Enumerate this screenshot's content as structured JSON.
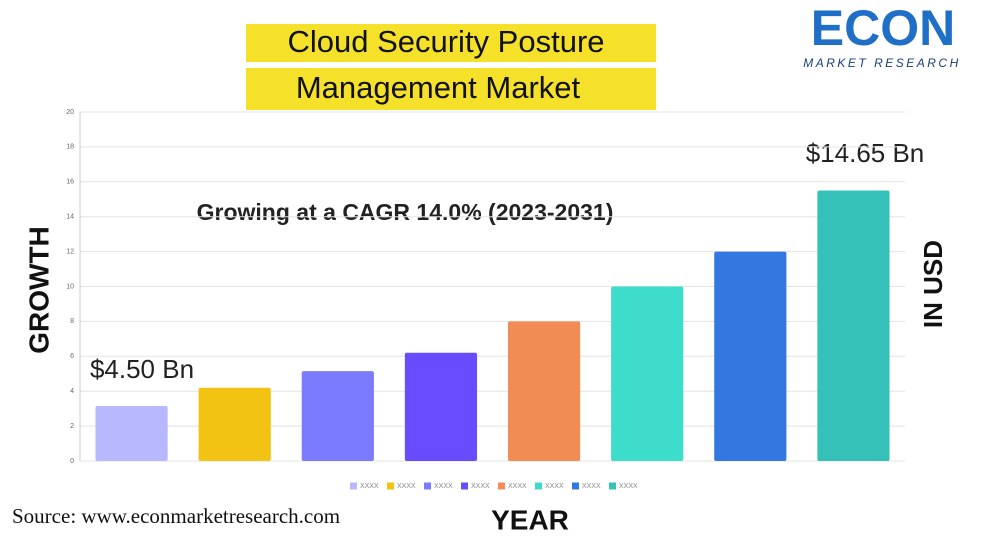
{
  "title_lines": [
    "Cloud Security Posture",
    "Management Market"
  ],
  "logo": {
    "name": "ECON",
    "subtitle": "MARKET RESEARCH"
  },
  "source": "Source: www.econmarketresearch.com",
  "chart_data": {
    "type": "bar",
    "subtitle": "Growing at a CAGR 14.0% (2023-2031)",
    "y_label": "GROWTH",
    "y2_label": "IN USD",
    "x_label": "YEAR",
    "annotations": [
      "$4.50 Bn",
      "$14.65 Bn"
    ],
    "categories": [
      null
    ],
    "series": [
      {
        "name": "XXXX",
        "color": "#b8b8ff",
        "values": [
          3.15
        ]
      },
      {
        "name": "XXXX",
        "color": "#f2c313",
        "values": [
          4.2
        ]
      },
      {
        "name": "XXXX",
        "color": "#7b7bff",
        "values": [
          5.15
        ]
      },
      {
        "name": "XXXX",
        "color": "#6a4cff",
        "values": [
          6.2
        ]
      },
      {
        "name": "XXXX",
        "color": "#f28c55",
        "values": [
          8
        ]
      },
      {
        "name": "XXXX",
        "color": "#3ddccb",
        "values": [
          10
        ]
      },
      {
        "name": "XXXX",
        "color": "#3378e0",
        "values": [
          12
        ]
      },
      {
        "name": "XXXX",
        "color": "#35c0b8",
        "values": [
          15.5
        ]
      }
    ],
    "ylim": [
      0,
      20
    ],
    "yticks": [
      0,
      2,
      4,
      6,
      8,
      10,
      12,
      14,
      16,
      18,
      20
    ],
    "grid": true
  }
}
